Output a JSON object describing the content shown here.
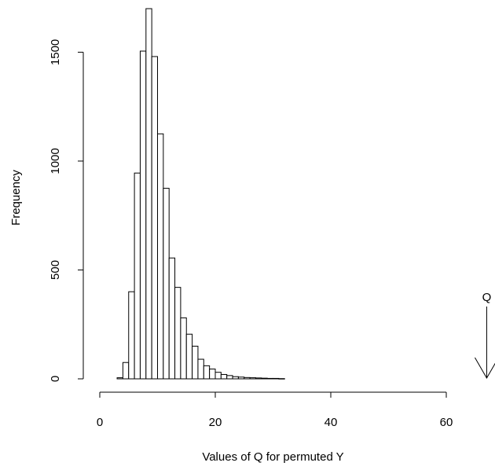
{
  "chart_data": {
    "type": "bar",
    "title": "",
    "xlabel": "Values of Q for permuted Y",
    "ylabel": "Frequency",
    "xlim": [
      0,
      60
    ],
    "ylim": [
      0,
      1700
    ],
    "x_ticks": [
      0,
      20,
      40,
      60
    ],
    "y_ticks": [
      0,
      500,
      1000,
      1500
    ],
    "bin_width": 1,
    "bins_left_edge": [
      3,
      4,
      5,
      6,
      7,
      8,
      9,
      10,
      11,
      12,
      13,
      14,
      15,
      16,
      17,
      18,
      19,
      20,
      21,
      22,
      23,
      24,
      25,
      26,
      27,
      28,
      29,
      30,
      31
    ],
    "counts": [
      5,
      75,
      400,
      945,
      1505,
      1700,
      1480,
      1125,
      875,
      555,
      420,
      280,
      205,
      150,
      90,
      60,
      45,
      30,
      20,
      15,
      10,
      8,
      6,
      5,
      4,
      3,
      2,
      2,
      1
    ],
    "grid": false,
    "annotations": [
      {
        "label": "Q",
        "x": 67,
        "marker": "downward-arrow"
      }
    ]
  }
}
